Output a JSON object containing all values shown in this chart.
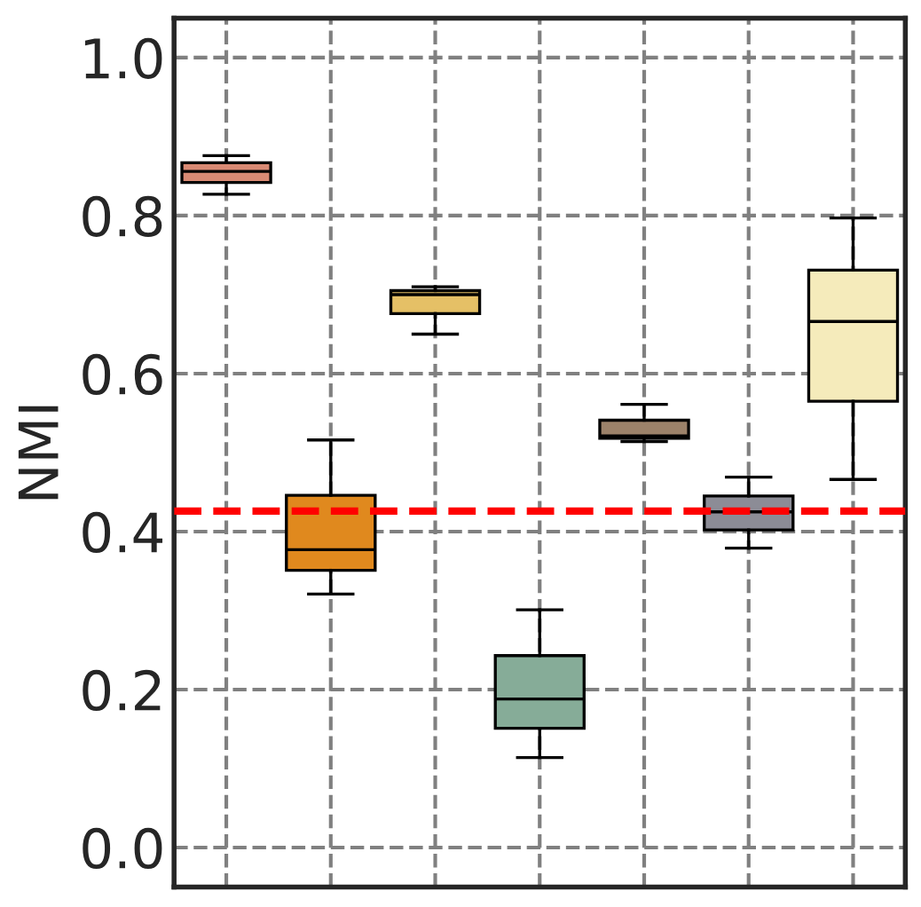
{
  "chart_data": {
    "type": "box",
    "ylabel": "NMI",
    "categories": [
      null,
      null,
      null,
      null,
      null,
      null,
      null
    ],
    "colors": [
      "#d98a74",
      "#e0891e",
      "#e5c066",
      "#86ac98",
      "#9c826a",
      "#8c8c96",
      "#f5ebbb"
    ],
    "boxes": [
      {
        "low": 0.827,
        "q1": 0.842,
        "median": 0.856,
        "q3": 0.867,
        "high": 0.876
      },
      {
        "low": 0.321,
        "q1": 0.351,
        "median": 0.377,
        "q3": 0.446,
        "high": 0.516
      },
      {
        "low": 0.65,
        "q1": 0.676,
        "median": 0.7,
        "q3": 0.705,
        "high": 0.71
      },
      {
        "low": 0.114,
        "q1": 0.151,
        "median": 0.188,
        "q3": 0.243,
        "high": 0.301
      },
      {
        "low": 0.514,
        "q1": 0.518,
        "median": 0.521,
        "q3": 0.541,
        "high": 0.561
      },
      {
        "low": 0.379,
        "q1": 0.402,
        "median": 0.425,
        "q3": 0.445,
        "high": 0.469
      },
      {
        "low": 0.466,
        "q1": 0.565,
        "median": 0.666,
        "q3": 0.731,
        "high": 0.797
      }
    ],
    "ylim": [
      -0.05,
      1.05
    ],
    "yticks": [
      {
        "value": 0,
        "label": "0.0"
      },
      {
        "value": 0.2,
        "label": "0.2"
      },
      {
        "value": 0.4,
        "label": "0.4"
      },
      {
        "value": 0.6,
        "label": "0.6"
      },
      {
        "value": 0.8,
        "label": "0.8"
      },
      {
        "value": 1.0,
        "label": "1.0"
      }
    ],
    "grid": true,
    "tick_labels": "y",
    "ref_lines": [
      {
        "axis": "y",
        "value": 0.426,
        "color": "#ff0000",
        "line_style": "dashed"
      }
    ]
  }
}
